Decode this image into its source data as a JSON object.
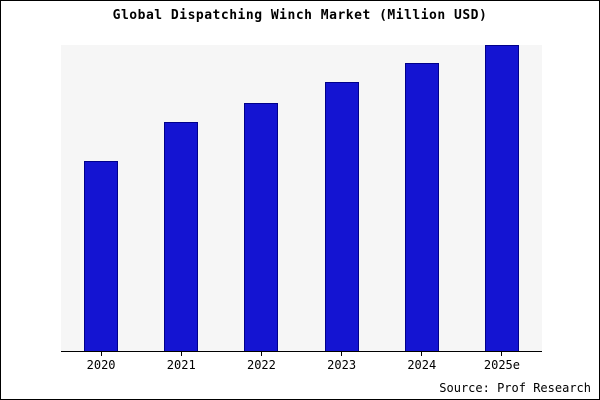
{
  "chart_data": {
    "type": "bar",
    "title": "Global Dispatching Winch Market (Million USD)",
    "categories": [
      "2020",
      "2021",
      "2022",
      "2023",
      "2024",
      "2025e"
    ],
    "values": [
      62,
      75,
      81,
      88,
      94,
      100
    ],
    "xlabel": "",
    "ylabel": "",
    "ylim": [
      0,
      100
    ],
    "grid": false,
    "legend": "none",
    "bar_color": "#1414d2",
    "bar_border_color": "#00008b",
    "plot_background": "#f6f6f6"
  },
  "source_text": "Source: Prof Research"
}
